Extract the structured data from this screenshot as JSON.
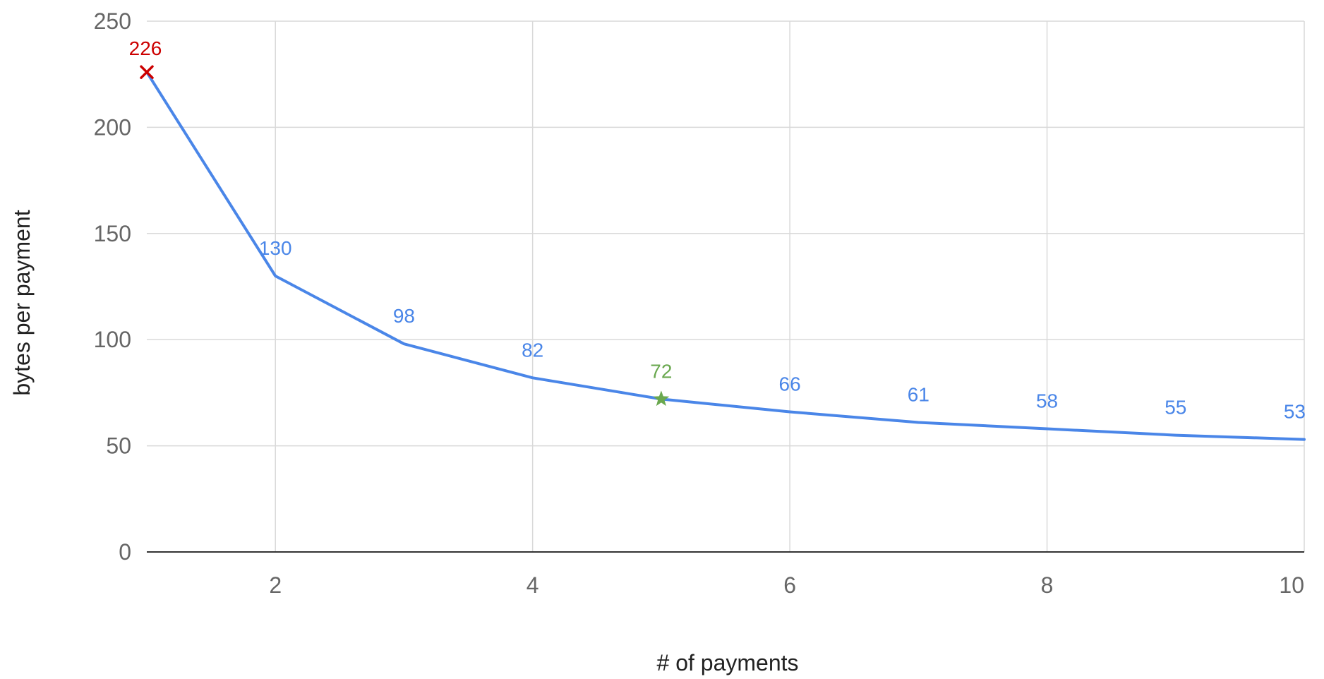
{
  "chart_data": {
    "type": "line",
    "title": "",
    "xlabel": "# of payments",
    "ylabel": "bytes per payment",
    "xlim": [
      1,
      10
    ],
    "ylim": [
      0,
      250
    ],
    "x_ticks": [
      2,
      4,
      6,
      8,
      10
    ],
    "y_ticks": [
      0,
      50,
      100,
      150,
      200,
      250
    ],
    "grid": true,
    "legend": "none",
    "series": [
      {
        "color": "#4a86e8",
        "x": [
          1,
          2,
          3,
          4,
          5,
          6,
          7,
          8,
          9,
          10
        ],
        "y": [
          226,
          130,
          98,
          82,
          72,
          66,
          61,
          58,
          55,
          53
        ],
        "labels": [
          "226",
          "130",
          "98",
          "82",
          "72",
          "66",
          "61",
          "58",
          "55",
          "53"
        ]
      }
    ],
    "highlights": [
      {
        "x": 1,
        "y": 226,
        "marker": "x-mark-icon",
        "color": "#cc0000"
      },
      {
        "x": 5,
        "y": 72,
        "marker": "star-icon",
        "color": "#6aa84f"
      }
    ]
  }
}
